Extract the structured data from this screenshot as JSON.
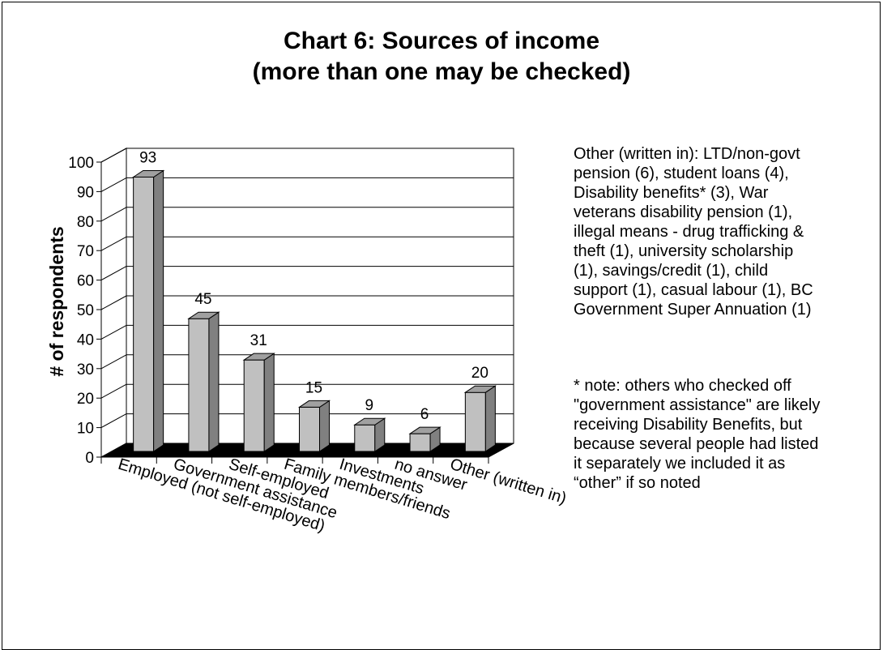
{
  "chart_data": {
    "type": "bar",
    "title_line1": "Chart 6: Sources of income",
    "title_line2": "(more than one may be checked)",
    "ylabel": "# of respondents",
    "xlabel": "",
    "ylim": [
      0,
      100
    ],
    "yticks": [
      0,
      10,
      20,
      30,
      40,
      50,
      60,
      70,
      80,
      90,
      100
    ],
    "grid": true,
    "categories": [
      "Employed (not self-employed)",
      "Government assistance",
      "Self-employed",
      "Family members/friends",
      "Investments",
      "no answer",
      "Other (written in)"
    ],
    "values": [
      93,
      45,
      31,
      15,
      9,
      6,
      20
    ],
    "colors": {
      "bar_front": "#c0c0c0",
      "bar_side": "#808080",
      "bar_top": "#a0a0a0",
      "floor": "#000000",
      "grid": "#000000"
    }
  },
  "notes": {
    "other": "Other (written in): LTD/non-govt\npension (6), student loans (4),\nDisability benefits* (3), War\nveterans disability pension (1),\nillegal means - drug trafficking &\ntheft (1), university scholarship\n(1), savings/credit (1), child\nsupport (1), casual labour (1), BC\nGovernment Super Annuation (1)",
    "footnote": "* note: others who checked off\n\"government assistance\" are likely\nreceiving Disability Benefits, but\nbecause several people had listed\nit separately we included it as\n“other” if so noted"
  }
}
